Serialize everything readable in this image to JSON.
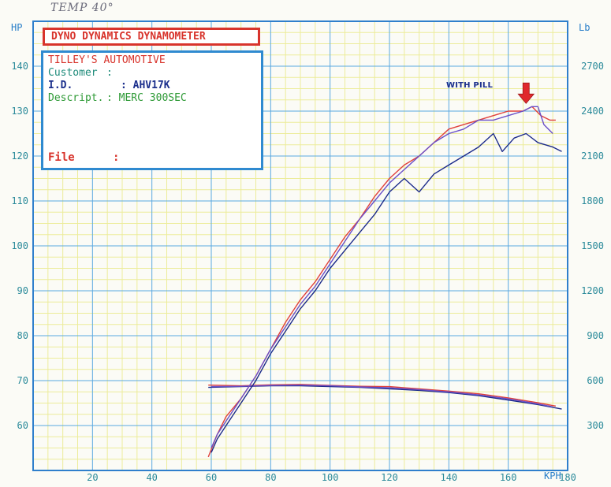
{
  "handwritten_note": "TEMP 40°",
  "title_box": "DYNO DYNAMICS DYNAMOMETER",
  "info": {
    "company": "TILLEY'S AUTOMOTIVE",
    "customer_label": "Customer",
    "customer_sep": ":",
    "id_label": "I.D.",
    "id_value": ": AHV17K",
    "desc_label": "Descript.",
    "desc_value": ": MERC 300SEC",
    "file_label": "File",
    "file_sep": ":"
  },
  "annotation": "WITH PILL",
  "colors": {
    "grid_minor": "#ecec9a",
    "grid_major": "#5aa8e0",
    "axis": "#2f7fcc",
    "tick_label": "#2a8a9a",
    "red_series": "#e0413c",
    "navy_series": "#1c2b8a",
    "purple_series": "#6a4fc8",
    "arrow": "#e0282c"
  },
  "chart_data": {
    "type": "line",
    "title": "DYNO DYNAMICS DYNAMOMETER",
    "x_axis": {
      "label": "KPH",
      "range": [
        0,
        180
      ],
      "ticks": [
        20,
        40,
        60,
        80,
        100,
        120,
        140,
        160,
        180
      ]
    },
    "y_left": {
      "label": "HP",
      "range": [
        50,
        150
      ],
      "ticks": [
        60,
        70,
        80,
        90,
        100,
        110,
        120,
        130,
        140
      ]
    },
    "y_right": {
      "label": "Lb",
      "range": [
        0,
        3000
      ],
      "ticks": [
        300,
        600,
        900,
        1200,
        1500,
        1800,
        2100,
        2400,
        2700
      ]
    },
    "grid": true,
    "power_series": [
      {
        "color_key": "navy_series",
        "x": [
          60,
          62,
          65,
          70,
          75,
          80,
          85,
          90,
          95,
          100,
          105,
          110,
          115,
          120,
          125,
          130,
          135,
          140,
          145,
          150,
          155,
          158,
          162,
          166,
          170,
          175,
          178
        ],
        "y": [
          54,
          57,
          60,
          65,
          70,
          76,
          81,
          86,
          90,
          95,
          99,
          103,
          107,
          112,
          115,
          112,
          116,
          118,
          120,
          122,
          125,
          121,
          124,
          125,
          123,
          122,
          121
        ]
      },
      {
        "color_key": "red_series",
        "x": [
          59,
          62,
          65,
          70,
          75,
          80,
          85,
          90,
          95,
          100,
          105,
          110,
          115,
          120,
          125,
          130,
          135,
          140,
          145,
          150,
          155,
          160,
          165,
          168,
          171,
          174,
          176
        ],
        "y": [
          53,
          58,
          62,
          66,
          71,
          77,
          83,
          88,
          92,
          97,
          102,
          106,
          111,
          115,
          118,
          120,
          123,
          126,
          127,
          128,
          129,
          130,
          130,
          131,
          129,
          128,
          128
        ]
      },
      {
        "color_key": "purple_series",
        "x": [
          60,
          62,
          65,
          70,
          75,
          80,
          85,
          90,
          95,
          100,
          105,
          110,
          115,
          120,
          125,
          130,
          135,
          140,
          145,
          150,
          155,
          160,
          165,
          168,
          170,
          172,
          175
        ],
        "y": [
          55,
          58,
          61,
          66,
          71,
          77,
          82,
          87,
          91,
          96,
          101,
          106,
          110,
          114,
          117,
          120,
          123,
          125,
          126,
          128,
          128,
          129,
          130,
          131,
          131,
          127,
          125
        ]
      }
    ],
    "tractive_series": [
      {
        "color_key": "navy_series",
        "x": [
          59,
          70,
          80,
          90,
          100,
          110,
          120,
          130,
          140,
          150,
          160,
          170,
          178
        ],
        "y": [
          555,
          560,
          565,
          565,
          560,
          555,
          545,
          535,
          520,
          500,
          470,
          440,
          410
        ]
      },
      {
        "color_key": "red_series",
        "x": [
          59,
          70,
          80,
          90,
          100,
          110,
          120,
          130,
          140,
          150,
          160,
          170,
          176
        ],
        "y": [
          570,
          565,
          572,
          575,
          568,
          562,
          560,
          545,
          530,
          512,
          485,
          452,
          430
        ]
      },
      {
        "color_key": "purple_series",
        "x": [
          60,
          70,
          80,
          90,
          100,
          110,
          120,
          130,
          140,
          150,
          160,
          170,
          175
        ],
        "y": [
          560,
          562,
          568,
          570,
          565,
          558,
          552,
          540,
          525,
          505,
          478,
          445,
          425
        ]
      }
    ],
    "annotation_arrow": {
      "x": 166,
      "hp": 131
    }
  }
}
